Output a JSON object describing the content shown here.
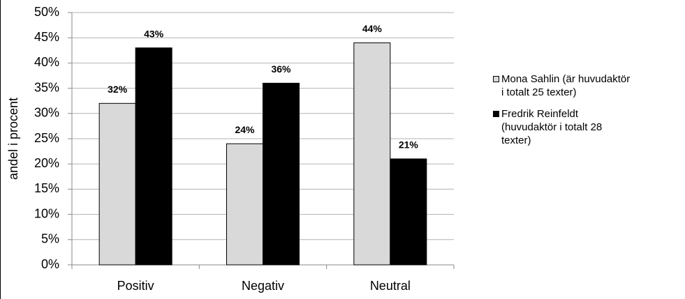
{
  "chart_data": {
    "type": "bar",
    "y_label": "andel i procent",
    "categories": [
      "Positiv",
      "Negativ",
      "Neutral"
    ],
    "series": [
      {
        "name": "Mona Sahlin (är huvudaktör i totalt 25 texter)",
        "color": "#d9d9d9",
        "values": [
          32,
          24,
          44
        ],
        "value_labels": [
          "32%",
          "24%",
          "44%"
        ]
      },
      {
        "name": "Fredrik Reinfeldt (huvudaktör i totalt 28 texter)",
        "color": "#000000",
        "values": [
          43,
          36,
          21
        ],
        "value_labels": [
          "43%",
          "36%",
          "21%"
        ]
      }
    ],
    "ylim": [
      0,
      50
    ],
    "yticks": [
      {
        "value": 0,
        "label": "0%"
      },
      {
        "value": 5,
        "label": "5%"
      },
      {
        "value": 10,
        "label": "10%"
      },
      {
        "value": 15,
        "label": "15%"
      },
      {
        "value": 20,
        "label": "20%"
      },
      {
        "value": 25,
        "label": "25%"
      },
      {
        "value": 30,
        "label": "30%"
      },
      {
        "value": 35,
        "label": "35%"
      },
      {
        "value": 40,
        "label": "40%"
      },
      {
        "value": 45,
        "label": "45%"
      },
      {
        "value": 50,
        "label": "50%"
      }
    ],
    "grid": true,
    "legend_position": "right"
  }
}
